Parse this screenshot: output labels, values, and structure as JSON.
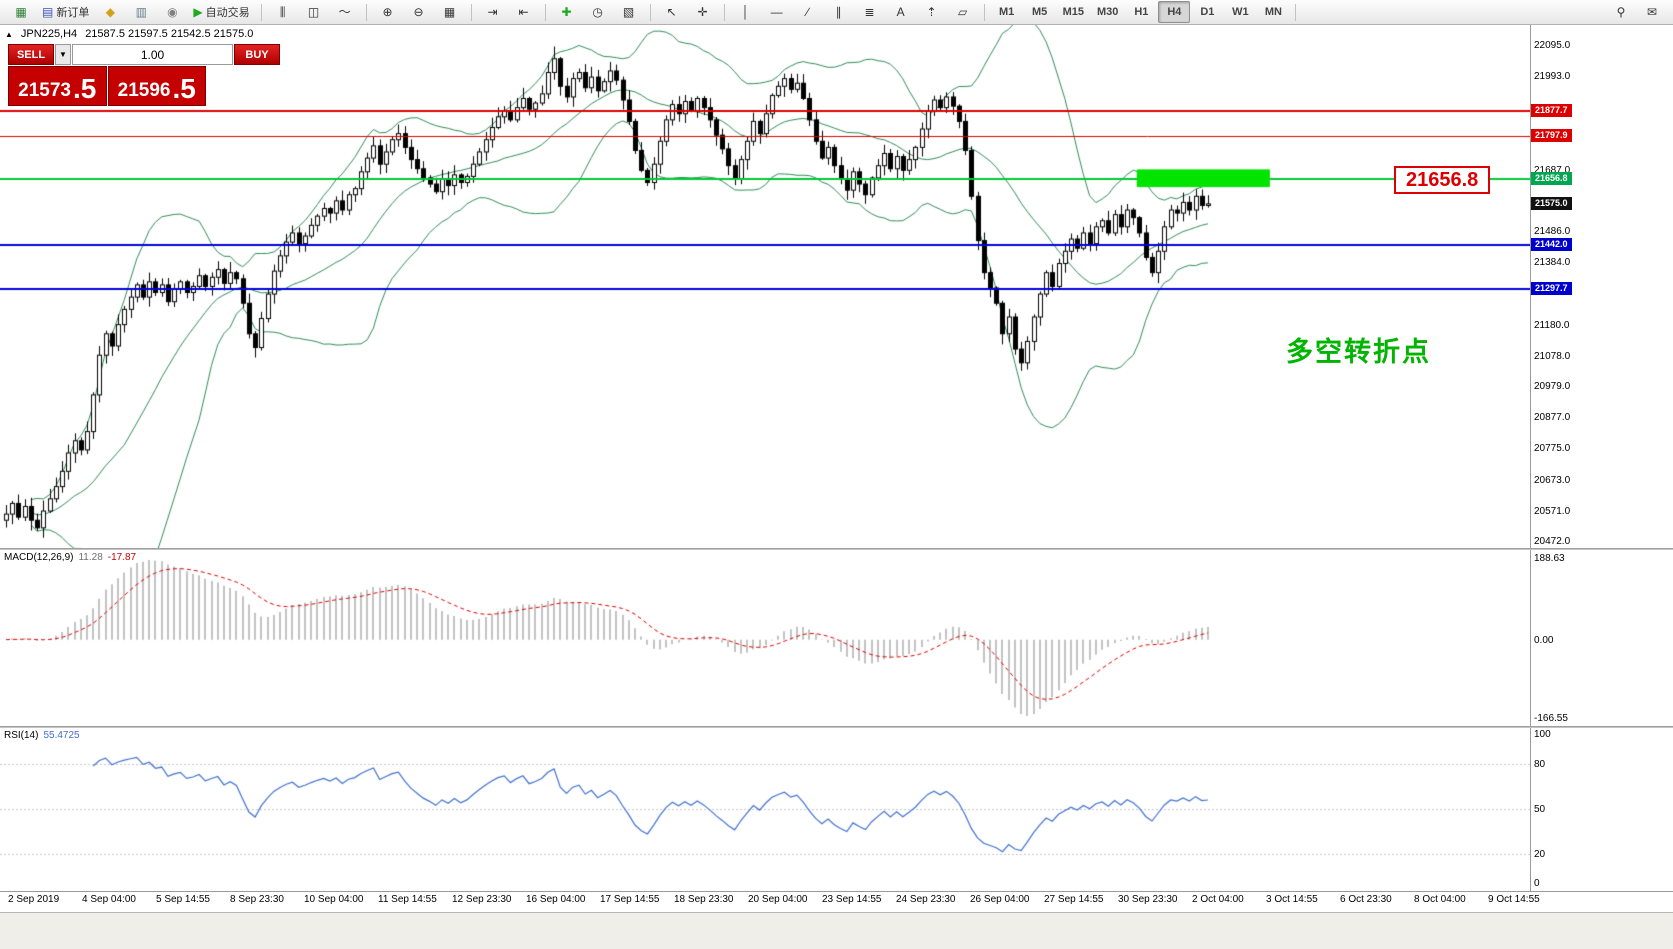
{
  "toolbar": {
    "groups": [
      {
        "items": [
          {
            "name": "new-chart-button",
            "glyph": "▦",
            "color": "#2e7d32"
          },
          {
            "name": "new-order-button",
            "glyph": "▤",
            "color": "#3f51b5",
            "label": "新订单"
          },
          {
            "name": "chart-profiles-button",
            "glyph": "◆",
            "color": "#d4a017"
          },
          {
            "name": "market-watch-button",
            "glyph": "▥",
            "color": "#607d8b"
          },
          {
            "name": "navigator-button",
            "glyph": "◉",
            "color": "#808080"
          },
          {
            "name": "autotrading-button",
            "glyph": "▶",
            "color": "#1faa1f",
            "label": "自动交易"
          }
        ]
      },
      {
        "items": [
          {
            "name": "bar-chart-button",
            "glyph": "⫼"
          },
          {
            "name": "candlestick-chart-button",
            "glyph": "◫"
          },
          {
            "name": "line-chart-button",
            "glyph": "〜"
          }
        ]
      },
      {
        "items": [
          {
            "name": "zoom-in-button",
            "glyph": "⊕"
          },
          {
            "name": "zoom-out-button",
            "glyph": "⊖"
          },
          {
            "name": "tile-windows-button",
            "glyph": "▦"
          }
        ]
      },
      {
        "items": [
          {
            "name": "auto-scroll-button",
            "glyph": "⇥"
          },
          {
            "name": "chart-shift-button",
            "glyph": "⇤"
          }
        ]
      },
      {
        "items": [
          {
            "name": "indicators-button",
            "glyph": "✚",
            "color": "#1faa1f"
          },
          {
            "name": "periods-button",
            "glyph": "◷"
          },
          {
            "name": "templates-button",
            "glyph": "▧"
          }
        ]
      },
      {
        "items": [
          {
            "name": "cursor-button",
            "glyph": "↖"
          },
          {
            "name": "crosshair-button",
            "glyph": "✛"
          }
        ]
      },
      {
        "items": [
          {
            "name": "vertical-line-button",
            "glyph": "│"
          },
          {
            "name": "horizontal-line-button",
            "glyph": "—"
          },
          {
            "name": "trendline-button",
            "glyph": "∕"
          },
          {
            "name": "channel-button",
            "glyph": "∥"
          },
          {
            "name": "fibonacci-button",
            "glyph": "≣"
          },
          {
            "name": "text-button",
            "glyph": "A"
          },
          {
            "name": "arrows-button",
            "glyph": "⇡"
          },
          {
            "name": "shapes-button",
            "glyph": "▱"
          }
        ]
      },
      {
        "items": [
          {
            "name": "timeframe-m1-button",
            "label": "M1",
            "tf": true
          },
          {
            "name": "timeframe-m5-button",
            "label": "M5",
            "tf": true
          },
          {
            "name": "timeframe-m15-button",
            "label": "M15",
            "tf": true
          },
          {
            "name": "timeframe-m30-button",
            "label": "M30",
            "tf": true
          },
          {
            "name": "timeframe-h1-button",
            "label": "H1",
            "tf": true
          },
          {
            "name": "timeframe-h4-button",
            "label": "H4",
            "tf": true,
            "active": true
          },
          {
            "name": "timeframe-d1-button",
            "label": "D1",
            "tf": true
          },
          {
            "name": "timeframe-w1-button",
            "label": "W1",
            "tf": true
          },
          {
            "name": "timeframe-mn-button",
            "label": "MN",
            "tf": true
          }
        ]
      },
      {
        "right": true,
        "items": [
          {
            "name": "search-button",
            "glyph": "⚲"
          },
          {
            "name": "messages-button",
            "glyph": "✉"
          }
        ]
      }
    ]
  },
  "chart": {
    "collapse_glyph": "▲",
    "symbol": "JPN225,H4",
    "ohlc": "21587.5 21597.5 21542.5 21575.0",
    "callout": {
      "text": "21656.8",
      "color": "#dd0000"
    },
    "annotation": {
      "text": "多空转折点",
      "color": "#00b400"
    }
  },
  "one_click": {
    "sell_label": "SELL",
    "buy_label": "BUY",
    "volume": "1.00",
    "dropdown_glyph": "▼",
    "sell_price_main": "21573",
    "sell_price_frac": ".5",
    "buy_price_main": "21596",
    "buy_price_frac": ".5"
  },
  "chart_data": {
    "type": "candlestick",
    "symbol": "JPN225",
    "timeframe": "H4",
    "y_min": 20472,
    "y_max": 22095,
    "first_open": 20540,
    "closes": [
      20560,
      20595,
      20550,
      20585,
      20540,
      20515,
      20570,
      20610,
      20650,
      20700,
      20760,
      20800,
      20770,
      20830,
      20950,
      21080,
      21150,
      21110,
      21180,
      21230,
      21270,
      21310,
      21270,
      21320,
      21285,
      21310,
      21255,
      21295,
      21320,
      21285,
      21305,
      21340,
      21305,
      21335,
      21360,
      21315,
      21350,
      21330,
      21250,
      21150,
      21105,
      21200,
      21280,
      21355,
      21405,
      21450,
      21480,
      21445,
      21470,
      21505,
      21535,
      21560,
      21545,
      21585,
      21555,
      21605,
      21625,
      21680,
      21725,
      21765,
      21705,
      21745,
      21785,
      21805,
      21760,
      21720,
      21690,
      21660,
      21640,
      21615,
      21655,
      21635,
      21670,
      21645,
      21665,
      21705,
      21745,
      21785,
      21825,
      21860,
      21880,
      21850,
      21890,
      21920,
      21885,
      21905,
      21935,
      22005,
      22050,
      21960,
      21925,
      21985,
      22005,
      21955,
      21990,
      21945,
      21975,
      22010,
      21980,
      21915,
      21845,
      21750,
      21685,
      21645,
      21705,
      21780,
      21850,
      21900,
      21870,
      21910,
      21880,
      21920,
      21890,
      21850,
      21800,
      21755,
      21700,
      21655,
      21720,
      21780,
      21845,
      21805,
      21870,
      21930,
      21960,
      21985,
      21950,
      21970,
      21920,
      21850,
      21780,
      21725,
      21760,
      21700,
      21655,
      21620,
      21680,
      21640,
      21605,
      21660,
      21700,
      21740,
      21690,
      21730,
      21685,
      21720,
      21760,
      21820,
      21880,
      21915,
      21890,
      21925,
      21895,
      21845,
      21750,
      21600,
      21455,
      21350,
      21300,
      21250,
      21150,
      21205,
      21100,
      21055,
      21125,
      21205,
      21280,
      21350,
      21305,
      21380,
      21420,
      21460,
      21430,
      21480,
      21445,
      21500,
      21520,
      21480,
      21540,
      21500,
      21555,
      21530,
      21480,
      21400,
      21350,
      21420,
      21500,
      21555,
      21545,
      21580,
      21555,
      21600,
      21570,
      21575
    ],
    "spike": {
      "index": 88,
      "high": 22090
    },
    "bollinger": {
      "period": 20,
      "deviation": 2,
      "color": "#2e8b57"
    },
    "horizontal_lines": [
      {
        "price": 21877.7,
        "color": "#dd0000",
        "width": 2
      },
      {
        "price": 21797.9,
        "color": "#dd0000",
        "width": 1
      },
      {
        "price": 21656.8,
        "color": "#00c832",
        "width": 2
      },
      {
        "price": 21442.0,
        "color": "#0000dd",
        "width": 2
      },
      {
        "price": 21297.7,
        "color": "#0000dd",
        "width": 2
      }
    ],
    "highlight_rect": {
      "x_frac": 0.743,
      "width_frac": 0.087,
      "price_top": 21688,
      "price_bottom": 21630,
      "color": "#00e400"
    },
    "y_axis_labels": [
      {
        "text": "22095.0",
        "price": 22095.0
      },
      {
        "text": "21993.0",
        "price": 21993.0
      },
      {
        "text": "21687.0",
        "price": 21687.0
      },
      {
        "text": "21486.0",
        "price": 21486.0
      },
      {
        "text": "21384.0",
        "price": 21384.0
      },
      {
        "text": "21180.0",
        "price": 21180.0
      },
      {
        "text": "21078.0",
        "price": 21078.0
      },
      {
        "text": "20979.0",
        "price": 20979.0
      },
      {
        "text": "20877.0",
        "price": 20877.0
      },
      {
        "text": "20775.0",
        "price": 20775.0
      },
      {
        "text": "20673.0",
        "price": 20673.0
      },
      {
        "text": "20571.0",
        "price": 20571.0
      },
      {
        "text": "20472.0",
        "price": 20472.0
      }
    ],
    "price_tags": [
      {
        "text": "21877.7",
        "price": 21877.7,
        "bg": "#dd0000"
      },
      {
        "text": "21797.9",
        "price": 21797.9,
        "bg": "#dd0000"
      },
      {
        "text": "21656.8",
        "price": 21656.8,
        "bg": "#00a650"
      },
      {
        "text": "21575.0",
        "price": 21575.0,
        "bg": "#111111"
      },
      {
        "text": "21442.0",
        "price": 21442.0,
        "bg": "#0000cc"
      },
      {
        "text": "21297.7",
        "price": 21297.7,
        "bg": "#0000cc"
      }
    ],
    "time_labels": [
      "2 Sep 2019",
      "4 Sep 04:00",
      "5 Sep 14:55",
      "8 Sep 23:30",
      "10 Sep 04:00",
      "11 Sep 14:55",
      "12 Sep 23:30",
      "16 Sep 04:00",
      "17 Sep 14:55",
      "18 Sep 23:30",
      "20 Sep 04:00",
      "23 Sep 14:55",
      "24 Sep 23:30",
      "26 Sep 04:00",
      "27 Sep 14:55",
      "30 Sep 23:30",
      "2 Oct 04:00",
      "3 Oct 14:55",
      "6 Oct 23:30",
      "8 Oct 04:00",
      "9 Oct 14:55"
    ]
  },
  "macd": {
    "name": "MACD(12,26,9)",
    "value_macd": "11.28",
    "value_signal": "-17.87",
    "fast": 12,
    "slow": 26,
    "signal_period": 9,
    "axis_top": "188.63",
    "axis_zero": "0.00",
    "axis_bottom": "-166.55",
    "histogram_color": "#c2c2c2",
    "signal_color": "#dd0000"
  },
  "rsi": {
    "name": "RSI(14)",
    "value": "55.4725",
    "period": 14,
    "levels": [
      80,
      50,
      20
    ],
    "level_labels": [
      "80",
      "50",
      "20"
    ],
    "axis_top": "100",
    "axis_bottom": "0",
    "line_color": "#4070d0"
  }
}
